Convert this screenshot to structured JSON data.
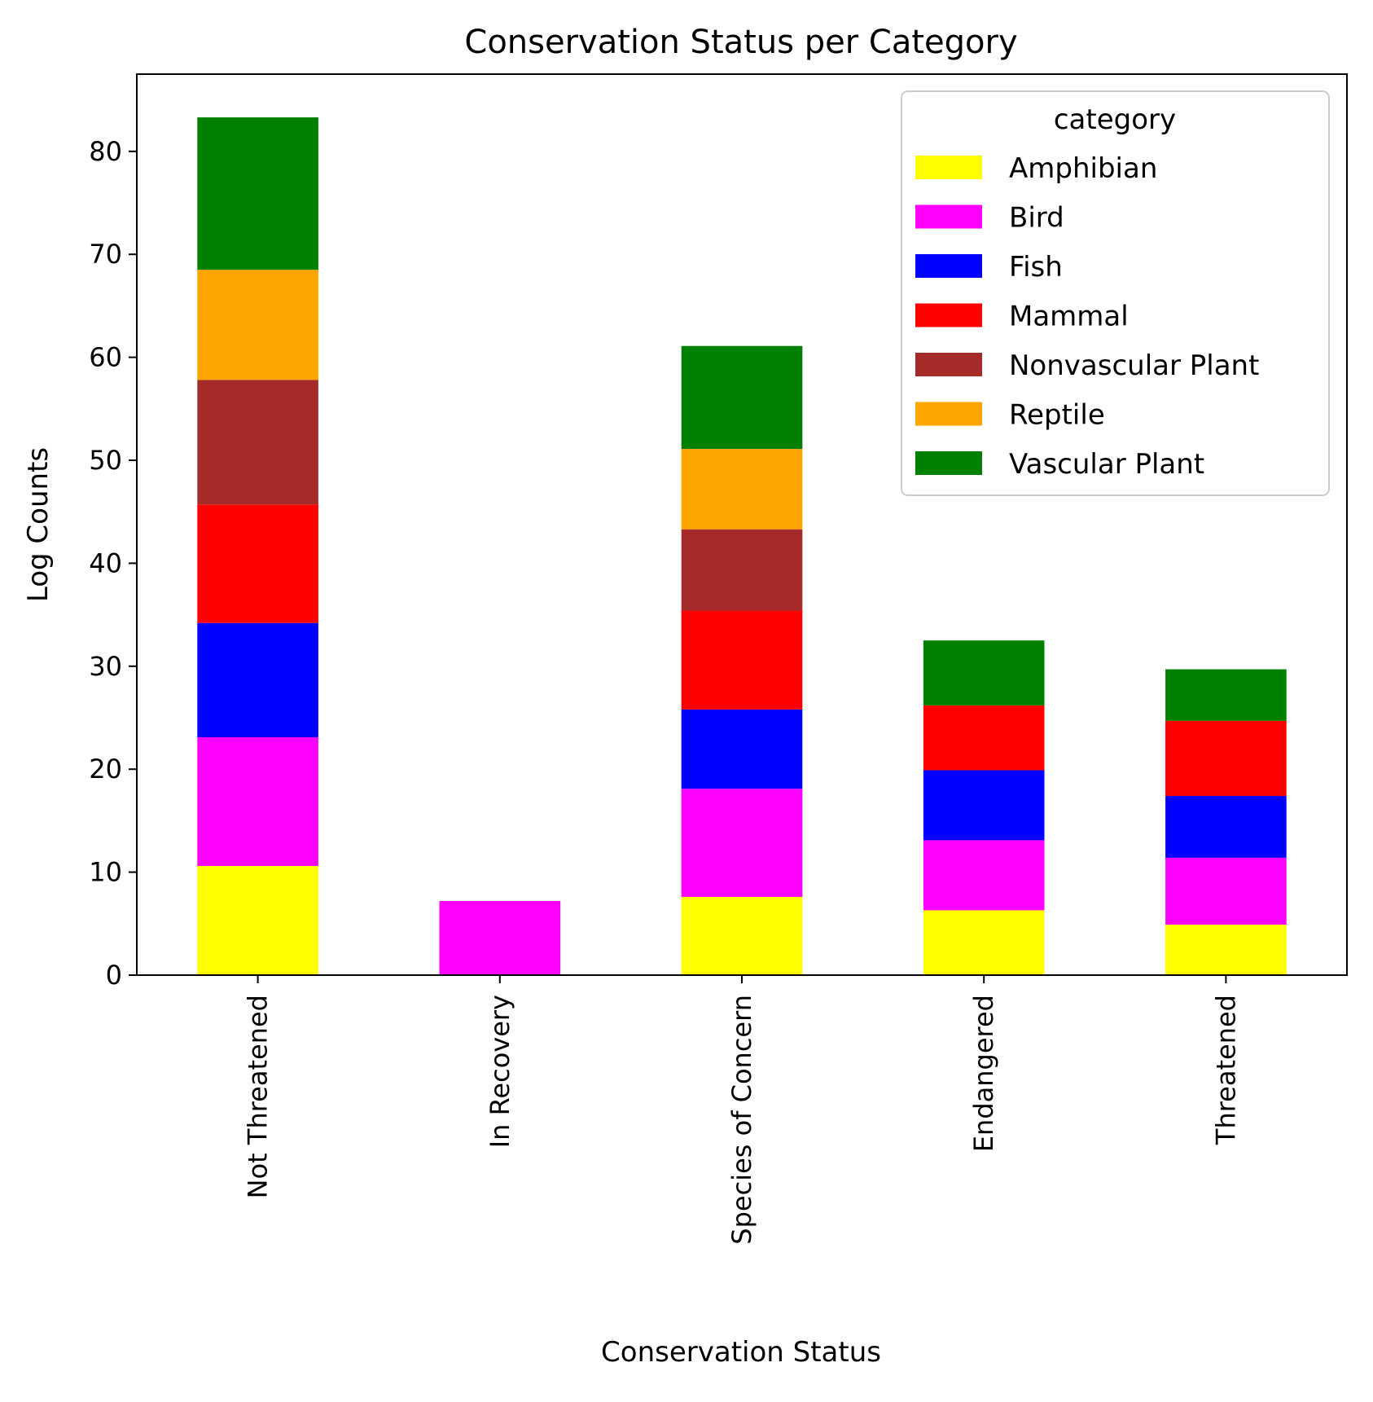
{
  "chart_data": {
    "type": "bar",
    "stacked": true,
    "title": "Conservation Status per Category",
    "xlabel": "Conservation Status",
    "ylabel": "Log Counts",
    "categories": [
      "Not Threatened",
      "In Recovery",
      "Species of Concern",
      "Endangered",
      "Threatened"
    ],
    "ylim": [
      0,
      87.5
    ],
    "yticks": [
      0,
      10,
      20,
      30,
      40,
      50,
      60,
      70,
      80
    ],
    "grid": false,
    "legend": {
      "title": "category",
      "placement": "top-right"
    },
    "series": [
      {
        "name": "Amphibian",
        "color": "#ffff00",
        "values": [
          10.6,
          0,
          7.6,
          6.3,
          4.9
        ]
      },
      {
        "name": "Bird",
        "color": "#ff00ff",
        "values": [
          12.5,
          7.2,
          10.5,
          6.8,
          6.5
        ]
      },
      {
        "name": "Fish",
        "color": "#0000ff",
        "values": [
          11.1,
          0,
          7.7,
          6.8,
          6.0
        ]
      },
      {
        "name": "Mammal",
        "color": "#ff0000",
        "values": [
          11.5,
          0,
          9.6,
          6.3,
          7.3
        ]
      },
      {
        "name": "Nonvascular Plant",
        "color": "#a52a2a",
        "values": [
          12.1,
          0,
          7.9,
          0,
          0
        ]
      },
      {
        "name": "Reptile",
        "color": "#ffa500",
        "values": [
          10.7,
          0,
          7.8,
          0,
          0
        ]
      },
      {
        "name": "Vascular Plant",
        "color": "#008000",
        "values": [
          14.8,
          0,
          10.0,
          6.3,
          5.0
        ]
      }
    ]
  }
}
